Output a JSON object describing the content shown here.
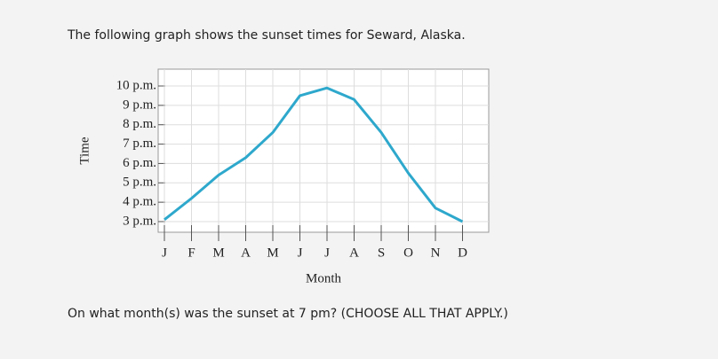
{
  "intro": "The following graph shows the sunset times for Seward, Alaska.",
  "question": "On what month(s) was the sunset at 7 pm? (CHOOSE ALL THAT APPLY.)",
  "chart_data": {
    "type": "line",
    "y_label": "Time",
    "x_label": "Month",
    "categories": [
      "J",
      "F",
      "M",
      "A",
      "M",
      "J",
      "J",
      "A",
      "S",
      "O",
      "N",
      "D"
    ],
    "values": [
      15.1,
      16.2,
      17.4,
      18.3,
      19.6,
      21.5,
      21.9,
      21.3,
      19.6,
      17.5,
      15.7,
      15.0
    ],
    "color": "#2ea8cc",
    "ylim": [
      14.45,
      22.87
    ],
    "yticks": [
      {
        "value": 22,
        "label": "10 p.m."
      },
      {
        "value": 21,
        "label": "9 p.m."
      },
      {
        "value": 20,
        "label": "8 p.m."
      },
      {
        "value": 19,
        "label": "7 p.m."
      },
      {
        "value": 18,
        "label": "6 p.m."
      },
      {
        "value": 17,
        "label": "5 p.m."
      },
      {
        "value": 16,
        "label": "4 p.m."
      },
      {
        "value": 15,
        "label": "3 p.m."
      }
    ],
    "grid": true
  }
}
